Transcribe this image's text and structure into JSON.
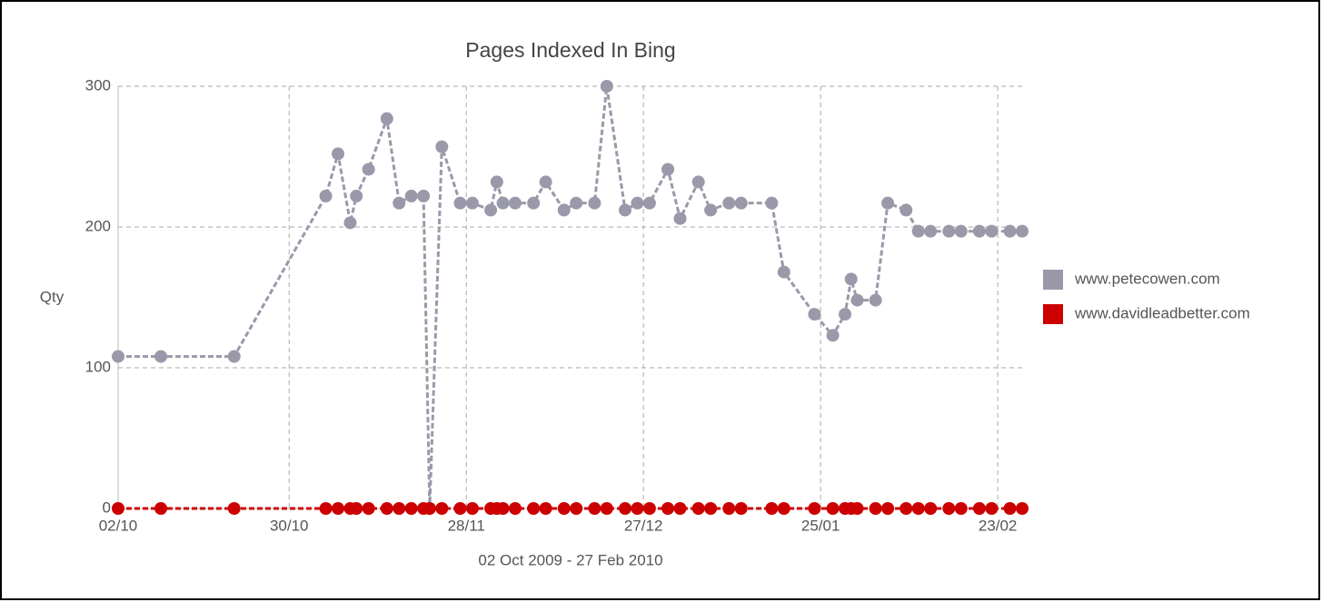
{
  "chart_data": {
    "type": "line",
    "title": "Pages Indexed In Bing",
    "x_label": "02 Oct 2009 - 27 Feb 2010",
    "y_label": "Qty",
    "x": [
      "2009-10-02",
      "2009-10-09",
      "2009-10-21",
      "2009-11-05",
      "2009-11-07",
      "2009-11-09",
      "2009-11-10",
      "2009-11-12",
      "2009-11-15",
      "2009-11-17",
      "2009-11-19",
      "2009-11-21",
      "2009-11-22",
      "2009-11-24",
      "2009-11-27",
      "2009-11-29",
      "2009-12-02",
      "2009-12-03",
      "2009-12-04",
      "2009-12-06",
      "2009-12-09",
      "2009-12-11",
      "2009-12-14",
      "2009-12-16",
      "2009-12-19",
      "2009-12-21",
      "2009-12-24",
      "2009-12-26",
      "2009-12-28",
      "2009-12-31",
      "2010-01-02",
      "2010-01-05",
      "2010-01-07",
      "2010-01-10",
      "2010-01-12",
      "2010-01-17",
      "2010-01-19",
      "2010-01-24",
      "2010-01-27",
      "2010-01-29",
      "2010-01-30",
      "2010-01-31",
      "2010-02-03",
      "2010-02-05",
      "2010-02-08",
      "2010-02-10",
      "2010-02-12",
      "2010-02-15",
      "2010-02-17",
      "2010-02-20",
      "2010-02-22",
      "2010-02-25",
      "2010-02-27"
    ],
    "series": [
      {
        "name": "www.petecowen.com",
        "color": "#9999aa",
        "values": [
          108,
          108,
          108,
          222,
          252,
          203,
          222,
          241,
          277,
          217,
          222,
          222,
          0,
          257,
          217,
          217,
          212,
          232,
          217,
          217,
          217,
          232,
          212,
          217,
          217,
          300,
          212,
          217,
          217,
          241,
          206,
          232,
          212,
          217,
          217,
          217,
          168,
          138,
          123,
          138,
          163,
          148,
          148,
          217,
          212,
          197,
          197,
          197,
          197,
          197,
          197,
          197,
          197
        ]
      },
      {
        "name": "www.davidleadbetter.com",
        "color": "#cc0000",
        "values": [
          0,
          0,
          0,
          0,
          0,
          0,
          0,
          0,
          0,
          0,
          0,
          0,
          0,
          0,
          0,
          0,
          0,
          0,
          0,
          0,
          0,
          0,
          0,
          0,
          0,
          0,
          0,
          0,
          0,
          0,
          0,
          0,
          0,
          0,
          0,
          0,
          0,
          0,
          0,
          0,
          0,
          0,
          0,
          0,
          0,
          0,
          0,
          0,
          0,
          0,
          0,
          0,
          0
        ]
      }
    ],
    "xlim": [
      "2009-10-02",
      "2010-02-27"
    ],
    "xticks": [
      {
        "value": "2009-10-02",
        "label": "02/10"
      },
      {
        "value": "2009-10-30",
        "label": "30/10"
      },
      {
        "value": "2009-11-28",
        "label": "28/11"
      },
      {
        "value": "2009-12-27",
        "label": "27/12"
      },
      {
        "value": "2010-01-25",
        "label": "25/01"
      },
      {
        "value": "2010-02-23",
        "label": "23/02"
      }
    ],
    "ylim": [
      0,
      300
    ],
    "yticks": [
      0,
      100,
      200,
      300
    ],
    "grid": true,
    "legend": "right"
  }
}
